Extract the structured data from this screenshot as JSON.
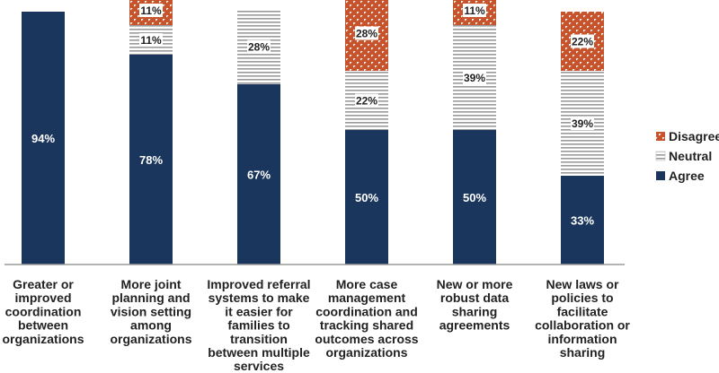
{
  "chart_data": {
    "type": "stacked-bar",
    "categories": [
      [
        "Greater or",
        "improved",
        "coordination",
        "between",
        "organizations"
      ],
      [
        "More joint",
        "planning and",
        "vision setting",
        "among",
        "organizations"
      ],
      [
        "Improved referral",
        "systems to make",
        "it easier for",
        "families to",
        "transition",
        "between multiple",
        "services"
      ],
      [
        "More case",
        "management",
        "coordination and",
        "tracking shared",
        "outcomes across",
        "organizations"
      ],
      [
        "New or more",
        "robust data",
        "sharing",
        "agreements"
      ],
      [
        "New laws or",
        "policies to",
        "facilitate",
        "collaboration or",
        "information",
        "sharing"
      ]
    ],
    "series": [
      {
        "name": "Agree",
        "values": [
          94,
          78,
          67,
          50,
          50,
          33
        ],
        "labels": [
          "94%",
          "78%",
          "67%",
          "50%",
          "50%",
          "33%"
        ]
      },
      {
        "name": "Neutral",
        "values": [
          0,
          11,
          28,
          22,
          39,
          39
        ],
        "labels": [
          "",
          "11%",
          "28%",
          "22%",
          "39%",
          "39%"
        ]
      },
      {
        "name": "Disagree",
        "values": [
          0,
          11,
          0,
          28,
          11,
          22
        ],
        "labels": [
          "",
          "11%",
          "",
          "28%",
          "11%",
          "22%"
        ]
      }
    ],
    "legend": {
      "position": "right",
      "order": [
        "Disagree",
        "Neutral",
        "Agree"
      ]
    },
    "colors": {
      "agree": "#1b365d",
      "neutral_stripe": "#9a9a9a",
      "disagree": "#c8532b",
      "axis": "#9a9a9a",
      "text": "#222222"
    },
    "ylim": [
      0,
      100
    ],
    "grid": false
  }
}
